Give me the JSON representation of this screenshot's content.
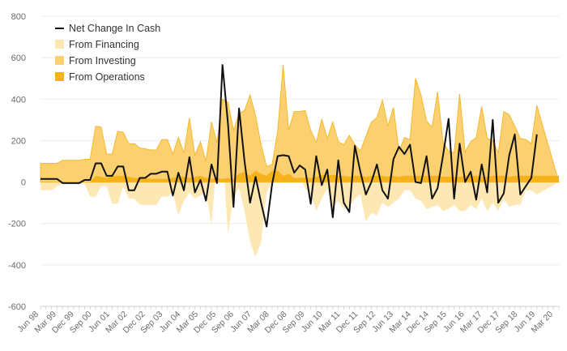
{
  "chart_data": {
    "type": "area",
    "title": "",
    "xlabel": "",
    "ylabel": "",
    "ylim": [
      -600,
      800
    ],
    "y_ticks": [
      800,
      600,
      400,
      200,
      0,
      -200,
      -400,
      -600
    ],
    "grid": true,
    "legend_position": "top-left",
    "x_start_label": "Jun 98",
    "x_tick_labels": [
      "Jun 98",
      "Mar 99",
      "Dec 99",
      "Sep 00",
      "Jun 01",
      "Mar 02",
      "Dec 02",
      "Sep 03",
      "Jun 04",
      "Mar 05",
      "Dec 05",
      "Sep 06",
      "Jun 07",
      "Mar 08",
      "Dec 08",
      "Sep 09",
      "Jun 10",
      "Mar 11",
      "Dec 11",
      "Sep 12",
      "Jun 13",
      "Mar 14",
      "Dec 14",
      "Sep 15",
      "Jun 16",
      "Mar 17",
      "Dec 17",
      "Sep 18",
      "Jun 19",
      "Mar 20"
    ],
    "colors": {
      "Net Change In Cash": "#111111",
      "From Financing": "#fde7b3",
      "From Investing": "#fbd070",
      "From Operations": "#f6b21a"
    },
    "series": [
      {
        "name": "From Operations",
        "values": [
          0,
          0,
          0,
          0,
          0,
          0,
          0,
          0,
          0,
          0,
          30,
          25,
          20,
          30,
          30,
          30,
          25,
          20,
          20,
          20,
          15,
          15,
          15,
          15,
          20,
          25,
          25,
          20,
          25,
          30,
          20,
          15,
          20,
          15,
          20,
          15,
          40,
          50,
          30,
          55,
          40,
          30,
          55,
          55,
          30,
          40,
          20,
          20,
          20,
          20,
          25,
          35,
          30,
          35,
          30,
          30,
          25,
          30,
          30,
          25,
          30,
          30,
          30,
          25,
          30,
          25,
          30,
          30,
          30,
          30,
          30,
          30,
          30,
          25,
          25,
          25,
          25,
          30,
          30,
          30,
          25,
          25,
          30,
          30,
          30,
          25,
          30,
          30,
          30,
          30,
          30,
          30,
          30,
          30,
          30
        ]
      },
      {
        "name": "From Investing",
        "values": [
          90,
          90,
          90,
          90,
          105,
          105,
          105,
          105,
          110,
          110,
          270,
          265,
          135,
          135,
          245,
          240,
          185,
          185,
          165,
          160,
          155,
          155,
          205,
          205,
          135,
          215,
          140,
          310,
          130,
          195,
          100,
          290,
          190,
          400,
          385,
          250,
          330,
          345,
          420,
          320,
          180,
          75,
          85,
          245,
          565,
          250,
          340,
          340,
          345,
          250,
          190,
          305,
          210,
          290,
          195,
          180,
          225,
          180,
          150,
          220,
          290,
          310,
          395,
          270,
          360,
          150,
          215,
          205,
          500,
          420,
          295,
          265,
          435,
          190,
          150,
          140,
          425,
          145,
          195,
          215,
          365,
          210,
          200,
          140,
          340,
          325,
          270,
          210,
          205,
          185,
          370
        ]
      },
      {
        "name": "From Financing",
        "values": [
          -40,
          -40,
          -40,
          -20,
          -10,
          -10,
          -10,
          -10,
          -10,
          -70,
          -70,
          -20,
          -20,
          -105,
          -105,
          -20,
          -80,
          -80,
          -110,
          -110,
          -110,
          -110,
          -70,
          -70,
          -50,
          -160,
          -90,
          -50,
          -80,
          -65,
          -50,
          -205,
          110,
          145,
          -250,
          -70,
          -30,
          -140,
          -290,
          -360,
          -290,
          -50,
          0,
          110,
          0,
          0,
          20,
          30,
          -30,
          -60,
          -140,
          -80,
          -30,
          -120,
          -90,
          -130,
          -120,
          -80,
          -60,
          -190,
          -150,
          -160,
          -100,
          -120,
          -100,
          -80,
          -40,
          -40,
          -80,
          -90,
          -130,
          -120,
          -110,
          -140,
          -130,
          -110,
          -140,
          -140,
          -110,
          -130,
          -80,
          -140,
          -100,
          -140,
          -80,
          -120,
          -110,
          -110,
          -40,
          -40,
          -60
        ]
      },
      {
        "name": "Net Change In Cash",
        "values": [
          15,
          15,
          15,
          15,
          -5,
          -5,
          -5,
          -5,
          10,
          10,
          90,
          90,
          30,
          30,
          75,
          75,
          -40,
          -40,
          20,
          20,
          40,
          40,
          50,
          50,
          -65,
          45,
          -40,
          120,
          -50,
          10,
          -90,
          85,
          -5,
          565,
          280,
          -120,
          355,
          100,
          -100,
          25,
          -100,
          -215,
          -10,
          125,
          130,
          125,
          45,
          80,
          60,
          -105,
          125,
          -15,
          60,
          -170,
          105,
          -100,
          -145,
          175,
          50,
          -60,
          0,
          85,
          -40,
          -80,
          110,
          170,
          135,
          180,
          0,
          -5,
          125,
          -80,
          -30,
          130,
          305,
          -80,
          185,
          0,
          50,
          -85,
          85,
          -50,
          300,
          -100,
          -55,
          130,
          230,
          -60,
          -20,
          20,
          230
        ]
      }
    ],
    "legend": [
      "Net Change In Cash",
      "From Financing",
      "From Investing",
      "From Operations"
    ]
  }
}
